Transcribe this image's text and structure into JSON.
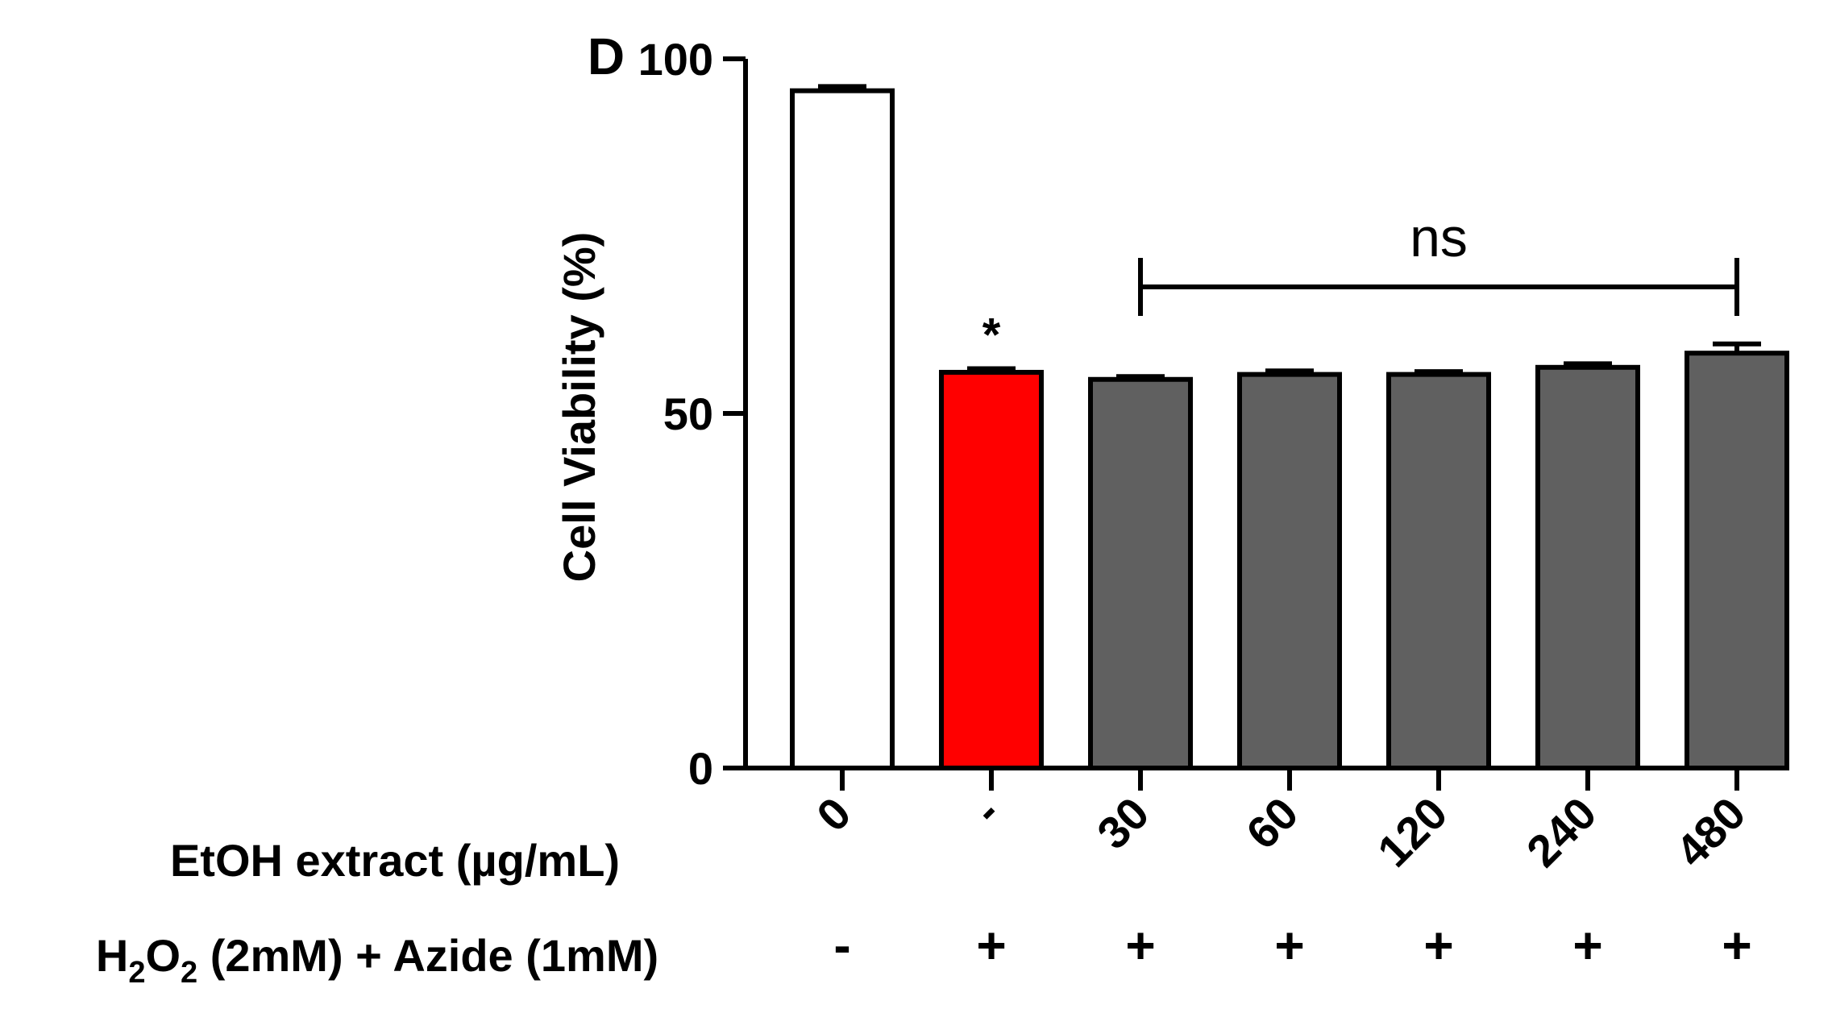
{
  "chart_data": {
    "type": "bar",
    "panel_label": "D",
    "ylabel": "Cell Viability (%)",
    "ylim": [
      0,
      100
    ],
    "yticks": [
      "0",
      "50",
      "100"
    ],
    "categories": [
      "0",
      "-",
      "30",
      "60",
      "120",
      "240",
      "480"
    ],
    "values": [
      95.5,
      55.8,
      54.8,
      55.5,
      55.5,
      56.5,
      58.5
    ],
    "errors": [
      0.6,
      0.5,
      0.4,
      0.5,
      0.4,
      0.5,
      1.3
    ],
    "colors": [
      "#ffffff",
      "#ff0000",
      "#606060",
      "#606060",
      "#606060",
      "#606060",
      "#606060"
    ],
    "row1_label": "EtOH extract (µg/mL)",
    "row2_label_parts": {
      "h": "H",
      "sub1": "2",
      "o": "O",
      "sub2": "2",
      "rest": " (2mM) + Azide (1mM)"
    },
    "row2_values": [
      "-",
      "+",
      "+",
      "+",
      "+",
      "+",
      "+"
    ],
    "annotations": {
      "star": {
        "text": "*",
        "bar_index": 1
      },
      "ns": {
        "text": "ns",
        "from_index": 2,
        "to_index": 6
      }
    }
  }
}
